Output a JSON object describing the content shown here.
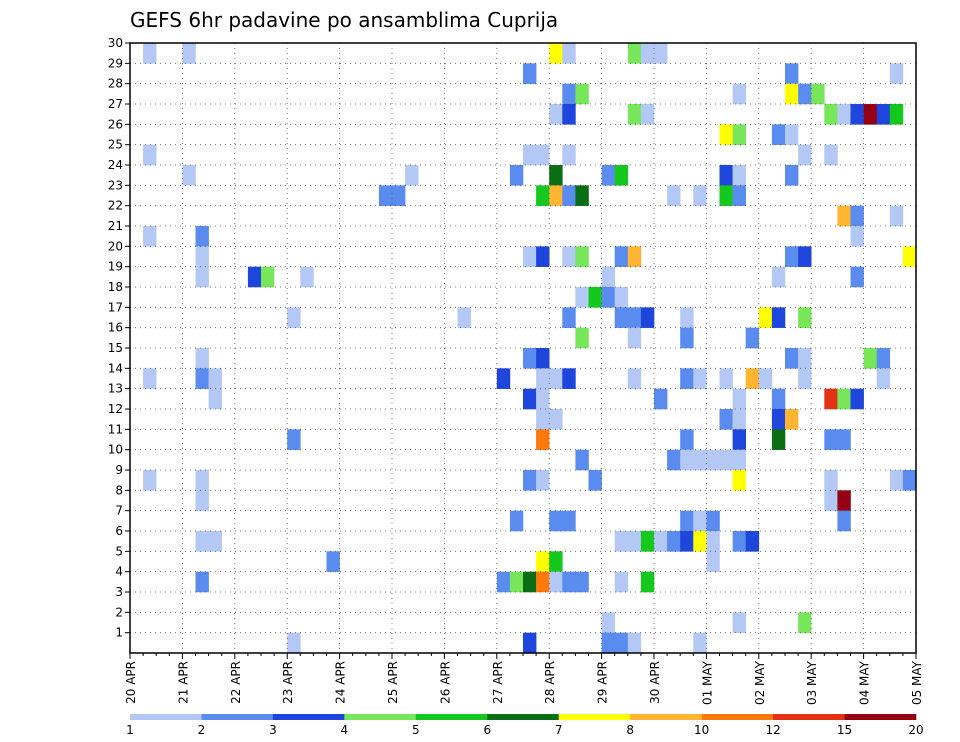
{
  "chart_data": {
    "type": "heatmap",
    "title": "GEFS 6hr padavine po ansamblima Cuprija",
    "x_tick_labels": [
      "20 APR",
      "21 APR",
      "22 APR",
      "23 APR",
      "24 APR",
      "25 APR",
      "26 APR",
      "27 APR",
      "28 APR",
      "29 APR",
      "30 APR",
      "01 MAY",
      "02 MAY",
      "03 MAY",
      "04 MAY",
      "05 MAY"
    ],
    "y_tick_labels": [
      "1",
      "2",
      "3",
      "4",
      "5",
      "6",
      "7",
      "8",
      "9",
      "10",
      "11",
      "12",
      "13",
      "14",
      "15",
      "16",
      "17",
      "18",
      "19",
      "20",
      "21",
      "22",
      "23",
      "24",
      "25",
      "26",
      "27",
      "28",
      "29",
      "30"
    ],
    "x_steps": 60,
    "y_range": [
      0,
      30
    ],
    "grid": true,
    "legend": {
      "position": "bottom",
      "labels": [
        "1",
        "2",
        "3",
        "4",
        "5",
        "6",
        "7",
        "8",
        "10",
        "12",
        "15",
        "20"
      ],
      "colors": [
        "#b4c8f5",
        "#5a8cf0",
        "#1e46dc",
        "#78e65a",
        "#14c81e",
        "#0a6e14",
        "#ffff00",
        "#ffb432",
        "#ff780a",
        "#e13214",
        "#960014"
      ]
    },
    "cells": [
      [
        2,
        30,
        0
      ],
      [
        5,
        30,
        0
      ],
      [
        33,
        30,
        6
      ],
      [
        34,
        30,
        0
      ],
      [
        39,
        30,
        3
      ],
      [
        40,
        30,
        0
      ],
      [
        41,
        30,
        0
      ],
      [
        31,
        29,
        1
      ],
      [
        51,
        29,
        1
      ],
      [
        59,
        29,
        0
      ],
      [
        34,
        28,
        1
      ],
      [
        35,
        28,
        3
      ],
      [
        47,
        28,
        0
      ],
      [
        51,
        28,
        6
      ],
      [
        52,
        28,
        1
      ],
      [
        53,
        28,
        3
      ],
      [
        33,
        27,
        0
      ],
      [
        34,
        27,
        2
      ],
      [
        39,
        27,
        3
      ],
      [
        40,
        27,
        0
      ],
      [
        54,
        27,
        3
      ],
      [
        55,
        27,
        0
      ],
      [
        56,
        27,
        2
      ],
      [
        57,
        27,
        10
      ],
      [
        58,
        27,
        2
      ],
      [
        59,
        27,
        4
      ],
      [
        46,
        26,
        6
      ],
      [
        47,
        26,
        3
      ],
      [
        50,
        26,
        1
      ],
      [
        51,
        26,
        0
      ],
      [
        2,
        25,
        0
      ],
      [
        31,
        25,
        0
      ],
      [
        32,
        25,
        0
      ],
      [
        34,
        25,
        0
      ],
      [
        52,
        25,
        0
      ],
      [
        54,
        25,
        0
      ],
      [
        5,
        24,
        0
      ],
      [
        22,
        24,
        0
      ],
      [
        30,
        24,
        1
      ],
      [
        33,
        24,
        5
      ],
      [
        37,
        24,
        1
      ],
      [
        38,
        24,
        4
      ],
      [
        46,
        24,
        2
      ],
      [
        47,
        24,
        0
      ],
      [
        51,
        24,
        1
      ],
      [
        20,
        23,
        1
      ],
      [
        21,
        23,
        1
      ],
      [
        32,
        23,
        4
      ],
      [
        33,
        23,
        7
      ],
      [
        34,
        23,
        1
      ],
      [
        35,
        23,
        5
      ],
      [
        42,
        23,
        0
      ],
      [
        44,
        23,
        0
      ],
      [
        46,
        23,
        4
      ],
      [
        47,
        23,
        1
      ],
      [
        55,
        22,
        7
      ],
      [
        56,
        22,
        1
      ],
      [
        59,
        22,
        0
      ],
      [
        2,
        21,
        0
      ],
      [
        6,
        21,
        1
      ],
      [
        56,
        21,
        0
      ],
      [
        6,
        20,
        0
      ],
      [
        31,
        20,
        0
      ],
      [
        32,
        20,
        2
      ],
      [
        34,
        20,
        0
      ],
      [
        35,
        20,
        3
      ],
      [
        38,
        20,
        1
      ],
      [
        39,
        20,
        7
      ],
      [
        51,
        20,
        1
      ],
      [
        52,
        20,
        2
      ],
      [
        60,
        20,
        6
      ],
      [
        6,
        19,
        0
      ],
      [
        10,
        19,
        2
      ],
      [
        11,
        19,
        3
      ],
      [
        14,
        19,
        0
      ],
      [
        37,
        19,
        0
      ],
      [
        50,
        19,
        0
      ],
      [
        56,
        19,
        1
      ],
      [
        35,
        18,
        0
      ],
      [
        36,
        18,
        4
      ],
      [
        37,
        18,
        1
      ],
      [
        38,
        18,
        0
      ],
      [
        13,
        17,
        0
      ],
      [
        26,
        17,
        0
      ],
      [
        34,
        17,
        1
      ],
      [
        38,
        17,
        1
      ],
      [
        39,
        17,
        1
      ],
      [
        40,
        17,
        2
      ],
      [
        43,
        17,
        0
      ],
      [
        49,
        17,
        6
      ],
      [
        50,
        17,
        2
      ],
      [
        52,
        17,
        3
      ],
      [
        35,
        16,
        3
      ],
      [
        39,
        16,
        0
      ],
      [
        43,
        16,
        1
      ],
      [
        48,
        16,
        1
      ],
      [
        6,
        15,
        0
      ],
      [
        31,
        15,
        1
      ],
      [
        32,
        15,
        2
      ],
      [
        51,
        15,
        1
      ],
      [
        52,
        15,
        0
      ],
      [
        57,
        15,
        3
      ],
      [
        58,
        15,
        1
      ],
      [
        2,
        14,
        0
      ],
      [
        6,
        14,
        1
      ],
      [
        7,
        14,
        0
      ],
      [
        29,
        14,
        2
      ],
      [
        32,
        14,
        0
      ],
      [
        33,
        14,
        0
      ],
      [
        34,
        14,
        2
      ],
      [
        39,
        14,
        0
      ],
      [
        43,
        14,
        1
      ],
      [
        44,
        14,
        0
      ],
      [
        46,
        14,
        0
      ],
      [
        48,
        14,
        7
      ],
      [
        49,
        14,
        0
      ],
      [
        52,
        14,
        0
      ],
      [
        58,
        14,
        0
      ],
      [
        7,
        13,
        0
      ],
      [
        31,
        13,
        2
      ],
      [
        32,
        13,
        0
      ],
      [
        41,
        13,
        1
      ],
      [
        47,
        13,
        0
      ],
      [
        50,
        13,
        1
      ],
      [
        54,
        13,
        9
      ],
      [
        55,
        13,
        3
      ],
      [
        56,
        13,
        2
      ],
      [
        32,
        12,
        0
      ],
      [
        33,
        12,
        0
      ],
      [
        46,
        12,
        1
      ],
      [
        47,
        12,
        0
      ],
      [
        50,
        12,
        2
      ],
      [
        51,
        12,
        7
      ],
      [
        13,
        11,
        1
      ],
      [
        32,
        11,
        8
      ],
      [
        43,
        11,
        1
      ],
      [
        47,
        11,
        2
      ],
      [
        50,
        11,
        5
      ],
      [
        54,
        11,
        1
      ],
      [
        55,
        11,
        1
      ],
      [
        35,
        10,
        1
      ],
      [
        42,
        10,
        1
      ],
      [
        43,
        10,
        0
      ],
      [
        44,
        10,
        0
      ],
      [
        45,
        10,
        0
      ],
      [
        46,
        10,
        0
      ],
      [
        47,
        10,
        0
      ],
      [
        2,
        9,
        0
      ],
      [
        6,
        9,
        0
      ],
      [
        31,
        9,
        1
      ],
      [
        32,
        9,
        0
      ],
      [
        36,
        9,
        1
      ],
      [
        47,
        9,
        6
      ],
      [
        54,
        9,
        0
      ],
      [
        59,
        9,
        0
      ],
      [
        60,
        9,
        1
      ],
      [
        6,
        8,
        0
      ],
      [
        54,
        8,
        0
      ],
      [
        55,
        8,
        10
      ],
      [
        30,
        7,
        1
      ],
      [
        33,
        7,
        1
      ],
      [
        34,
        7,
        1
      ],
      [
        43,
        7,
        1
      ],
      [
        44,
        7,
        0
      ],
      [
        45,
        7,
        1
      ],
      [
        55,
        7,
        1
      ],
      [
        6,
        6,
        0
      ],
      [
        7,
        6,
        0
      ],
      [
        38,
        6,
        0
      ],
      [
        39,
        6,
        0
      ],
      [
        40,
        6,
        4
      ],
      [
        41,
        6,
        0
      ],
      [
        42,
        6,
        1
      ],
      [
        43,
        6,
        2
      ],
      [
        44,
        6,
        6
      ],
      [
        45,
        6,
        0
      ],
      [
        47,
        6,
        1
      ],
      [
        48,
        6,
        2
      ],
      [
        16,
        5,
        1
      ],
      [
        32,
        5,
        6
      ],
      [
        33,
        5,
        4
      ],
      [
        45,
        5,
        0
      ],
      [
        6,
        4,
        1
      ],
      [
        29,
        4,
        1
      ],
      [
        30,
        4,
        3
      ],
      [
        31,
        4,
        5
      ],
      [
        32,
        4,
        8
      ],
      [
        33,
        4,
        0
      ],
      [
        34,
        4,
        1
      ],
      [
        35,
        4,
        1
      ],
      [
        38,
        4,
        0
      ],
      [
        40,
        4,
        4
      ],
      [
        37,
        2,
        0
      ],
      [
        47,
        2,
        0
      ],
      [
        52,
        2,
        3
      ],
      [
        13,
        1,
        0
      ],
      [
        31,
        1,
        2
      ],
      [
        37,
        1,
        1
      ],
      [
        38,
        1,
        1
      ],
      [
        39,
        1,
        0
      ],
      [
        44,
        1,
        0
      ]
    ]
  }
}
